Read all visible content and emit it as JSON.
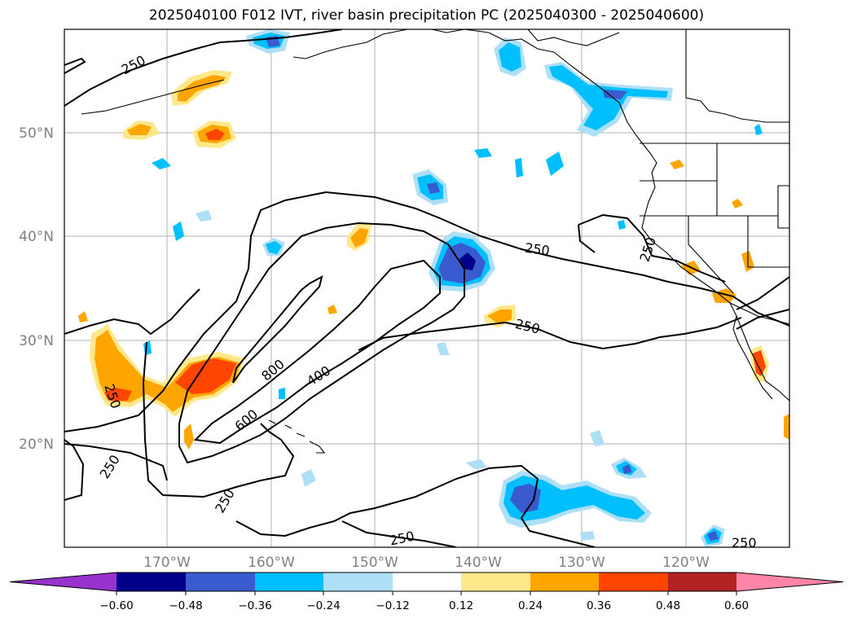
{
  "title": "2025040100 F012 IVT, river basin precipitation PC (2025040300 - 2025040600)",
  "map": {
    "lat_labels": [
      "20°N",
      "30°N",
      "40°N",
      "50°N"
    ],
    "lon_labels": [
      "170°W",
      "160°W",
      "150°W",
      "140°W",
      "130°W",
      "120°W"
    ],
    "ivt_contour_labels": [
      "250",
      "250",
      "250",
      "250",
      "250",
      "250",
      "250",
      "250",
      "400",
      "600",
      "800"
    ],
    "colors": {
      "neg_060": "#9932CC",
      "neg_048": "#00008B",
      "neg_036": "#3A5BCF",
      "neg_024": "#00BFFF",
      "neg_012": "#ADDFF7",
      "zero": "#FFFFFF",
      "pos_012": "#FFE88A",
      "pos_024": "#FFA500",
      "pos_036": "#FF4500",
      "pos_048": "#B22222",
      "pos_060": "#FF85A8"
    }
  },
  "colorbar": {
    "ticks": [
      "−0.60",
      "−0.48",
      "−0.36",
      "−0.24",
      "−0.12",
      "0.12",
      "0.24",
      "0.36",
      "0.48",
      "0.60"
    ]
  }
}
